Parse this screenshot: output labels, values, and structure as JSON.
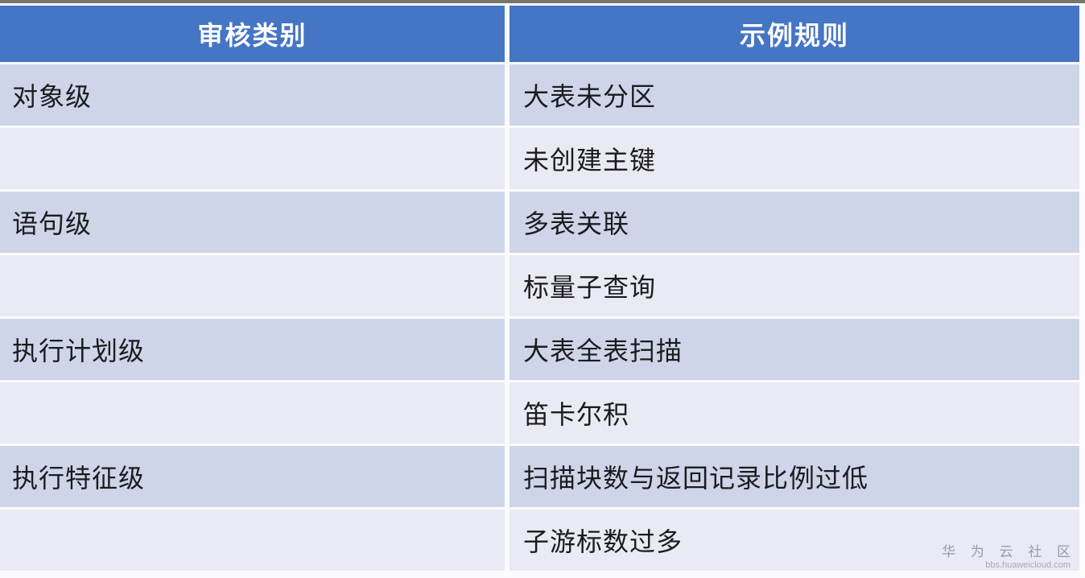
{
  "table": {
    "headers": {
      "category": "审核类别",
      "rule": "示例规则"
    },
    "rows": [
      {
        "category": "对象级",
        "rule": "大表未分区"
      },
      {
        "category": "",
        "rule": "未创建主键"
      },
      {
        "category": "语句级",
        "rule": "多表关联"
      },
      {
        "category": "",
        "rule": "标量子查询"
      },
      {
        "category": "执行计划级",
        "rule": "大表全表扫描"
      },
      {
        "category": "",
        "rule": "笛卡尔积"
      },
      {
        "category": "执行特征级",
        "rule": "扫描块数与返回记录比例过低"
      },
      {
        "category": "",
        "rule": "子游标数过多"
      }
    ]
  },
  "watermark": {
    "brand": "华 为 云 社 区",
    "site": "bbs.huaweicloud.com"
  },
  "colors": {
    "header_bg": "#4575c5",
    "row_dark": "#cfd5e8",
    "row_light": "#e9eaf4",
    "top_strip": "#77766e",
    "text": "#1b1b1f",
    "watermark_text": "#9b9aa4"
  }
}
